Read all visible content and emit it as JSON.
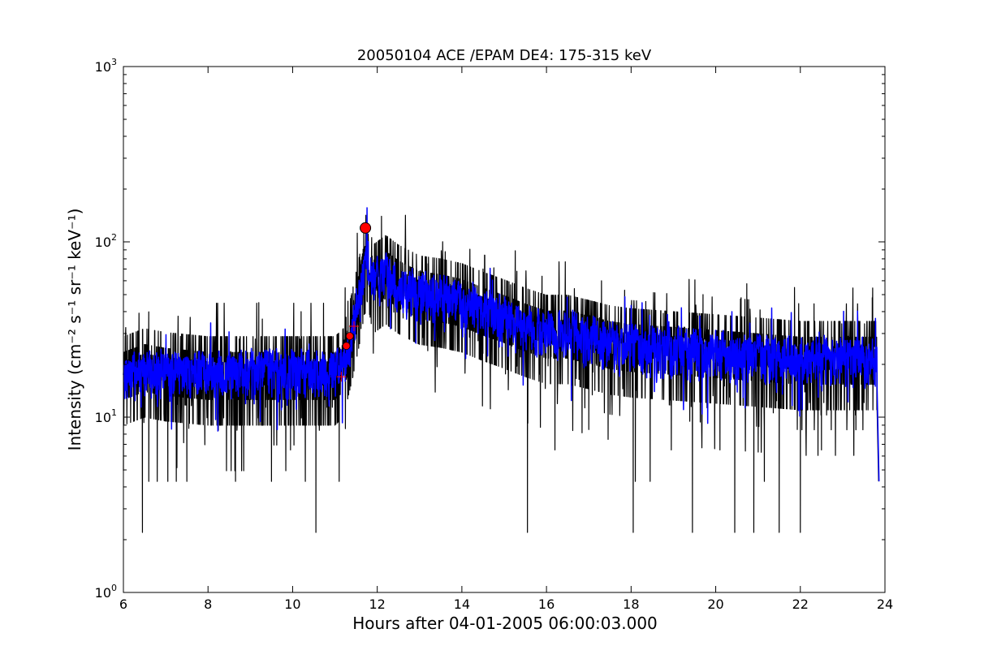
{
  "chart_data": {
    "type": "line",
    "title": "20050104 ACE /EPAM DE4: 175-315 keV",
    "xlabel": "Hours after 04-01-2005 06:00:03.000",
    "ylabel": "Intensity (cm⁻² s⁻¹ sr⁻¹ keV⁻¹)",
    "yscale": "log",
    "xlim": [
      6,
      24
    ],
    "ylim": [
      1,
      1000
    ],
    "grid": false,
    "x_ticks": [
      6,
      8,
      10,
      12,
      14,
      16,
      18,
      20,
      22,
      24
    ],
    "x_tick_labels": [
      "6",
      "8",
      "10",
      "12",
      "14",
      "16",
      "18",
      "20",
      "22",
      "24"
    ],
    "y_ticks": [
      1,
      10,
      100,
      1000
    ],
    "y_tick_labels": [
      {
        "base": "10",
        "exp": "0"
      },
      {
        "base": "10",
        "exp": "1"
      },
      {
        "base": "10",
        "exp": "2"
      },
      {
        "base": "10",
        "exp": "3"
      }
    ],
    "series": [
      {
        "color": "#000000",
        "profile": [
          [
            6.0,
            18
          ],
          [
            6.5,
            20
          ],
          [
            7.0,
            19
          ],
          [
            8.0,
            18
          ],
          [
            9.0,
            18
          ],
          [
            10.0,
            18
          ],
          [
            11.0,
            18
          ],
          [
            11.2,
            20
          ],
          [
            11.4,
            32
          ],
          [
            11.6,
            55
          ],
          [
            11.75,
            95
          ],
          [
            11.9,
            60
          ],
          [
            12.2,
            68
          ],
          [
            12.5,
            60
          ],
          [
            13.0,
            52
          ],
          [
            13.5,
            50
          ],
          [
            14.0,
            47
          ],
          [
            14.5,
            42
          ],
          [
            15.0,
            38
          ],
          [
            15.5,
            34
          ],
          [
            16.0,
            31
          ],
          [
            16.5,
            31
          ],
          [
            17.0,
            29
          ],
          [
            17.5,
            27
          ],
          [
            18.0,
            26
          ],
          [
            19.0,
            25
          ],
          [
            20.0,
            24
          ],
          [
            21.0,
            23
          ],
          [
            22.0,
            22
          ],
          [
            23.0,
            22
          ],
          [
            23.8,
            22
          ]
        ],
        "spikes_down": [
          [
            6.45,
            2.2
          ],
          [
            6.6,
            4.3
          ],
          [
            6.8,
            4.3
          ],
          [
            7.05,
            4.3
          ],
          [
            7.25,
            4.3
          ],
          [
            7.5,
            4.3
          ],
          [
            8.65,
            4.3
          ],
          [
            9.5,
            4.3
          ],
          [
            9.95,
            6.5
          ],
          [
            10.3,
            4.3
          ],
          [
            10.55,
            2.2
          ],
          [
            11.1,
            4.3
          ],
          [
            15.55,
            2.2
          ],
          [
            16.2,
            6.5
          ],
          [
            17.0,
            8.5
          ],
          [
            18.05,
            2.2
          ],
          [
            18.1,
            4.3
          ],
          [
            18.45,
            4.3
          ],
          [
            18.95,
            6.5
          ],
          [
            19.45,
            2.2
          ],
          [
            20.1,
            6.5
          ],
          [
            20.45,
            2.2
          ],
          [
            20.9,
            2.2
          ],
          [
            21.15,
            4.3
          ],
          [
            21.5,
            2.2
          ],
          [
            22.0,
            2.2
          ],
          [
            22.5,
            6.5
          ],
          [
            23.85,
            4.3
          ]
        ],
        "spikes_up": [
          [
            9.2,
            45
          ],
          [
            10.2,
            40
          ],
          [
            12.1,
            140
          ],
          [
            12.3,
            95
          ],
          [
            13.2,
            75
          ],
          [
            14.5,
            70
          ],
          [
            15.3,
            68
          ],
          [
            16.3,
            60
          ],
          [
            17.3,
            60
          ],
          [
            19.7,
            50
          ],
          [
            20.6,
            48
          ],
          [
            23.7,
            48
          ]
        ]
      },
      {
        "color": "#0000ff",
        "profile": [
          [
            6.0,
            17
          ],
          [
            7.0,
            18
          ],
          [
            8.0,
            18
          ],
          [
            9.0,
            18
          ],
          [
            10.0,
            18
          ],
          [
            11.0,
            18
          ],
          [
            11.2,
            20
          ],
          [
            11.4,
            30
          ],
          [
            11.6,
            50
          ],
          [
            11.75,
            90
          ],
          [
            11.9,
            58
          ],
          [
            12.2,
            62
          ],
          [
            12.5,
            56
          ],
          [
            13.0,
            50
          ],
          [
            13.5,
            48
          ],
          [
            14.0,
            45
          ],
          [
            14.5,
            40
          ],
          [
            15.0,
            36
          ],
          [
            15.5,
            33
          ],
          [
            16.0,
            30
          ],
          [
            16.5,
            30
          ],
          [
            17.0,
            28
          ],
          [
            17.5,
            26
          ],
          [
            18.0,
            25
          ],
          [
            19.0,
            24
          ],
          [
            20.0,
            23
          ],
          [
            21.0,
            22
          ],
          [
            22.0,
            21
          ],
          [
            23.0,
            21
          ],
          [
            23.8,
            21
          ]
        ],
        "end_value": 4.3
      }
    ],
    "markers": [
      {
        "x": 11.72,
        "y": 120,
        "color": "#ff0000",
        "shape": "circle-large"
      },
      {
        "x": 11.27,
        "y": 25.5,
        "color": "#ff0000",
        "shape": "circle-small"
      },
      {
        "x": 11.35,
        "y": 29,
        "color": "#ff0000",
        "shape": "circle-small"
      },
      {
        "x": 11.45,
        "y": 33,
        "color": "#ff0000",
        "shape": "plus"
      },
      {
        "x": 11.15,
        "y": 17,
        "color": "#ff0000",
        "shape": "plus"
      }
    ]
  }
}
